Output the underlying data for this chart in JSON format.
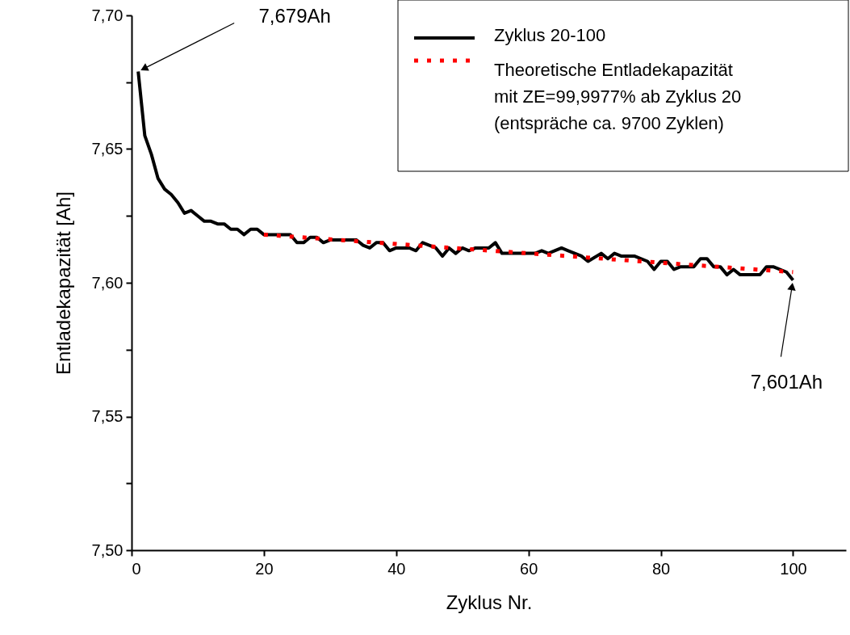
{
  "chart_data": {
    "type": "line",
    "xlabel": "Zyklus Nr.",
    "ylabel": "Entladekapazität [Ah]",
    "xlim": [
      0,
      108
    ],
    "xticks": [
      0,
      20,
      40,
      60,
      80,
      100
    ],
    "ylim": [
      7.5,
      7.7
    ],
    "yticks": [
      {
        "value": 7.5,
        "label": "7,50"
      },
      {
        "value": 7.525,
        "label": null
      },
      {
        "value": 7.55,
        "label": "7,55"
      },
      {
        "value": 7.575,
        "label": null
      },
      {
        "value": 7.6,
        "label": "7,60"
      },
      {
        "value": 7.625,
        "label": null
      },
      {
        "value": 7.65,
        "label": "7,65"
      },
      {
        "value": 7.675,
        "label": null
      },
      {
        "value": 7.7,
        "label": "7,70"
      }
    ],
    "legend": "top right",
    "series": [
      {
        "name": "Zyklus 20-100",
        "color": "#000000",
        "line_style": "solid",
        "x": [
          1,
          2,
          3,
          4,
          5,
          6,
          7,
          8,
          9,
          10,
          11,
          12,
          13,
          14,
          15,
          16,
          17,
          18,
          19,
          20,
          24,
          25,
          26,
          27,
          28,
          29,
          30,
          34,
          35,
          36,
          37,
          38,
          39,
          40,
          42,
          43,
          44,
          45,
          46,
          47,
          48,
          49,
          50,
          51,
          52,
          54,
          55,
          56,
          61,
          62,
          63,
          65,
          66,
          68,
          69,
          71,
          72,
          73,
          74,
          76,
          78,
          79,
          80,
          81,
          82,
          83,
          85,
          86,
          87,
          88,
          89,
          90,
          91,
          92,
          95,
          96,
          97,
          99,
          100
        ],
        "values": [
          7.679,
          7.655,
          7.648,
          7.639,
          7.635,
          7.633,
          7.63,
          7.626,
          7.627,
          7.625,
          7.623,
          7.623,
          7.622,
          7.622,
          7.62,
          7.62,
          7.618,
          7.62,
          7.62,
          7.618,
          7.618,
          7.615,
          7.615,
          7.617,
          7.617,
          7.615,
          7.616,
          7.616,
          7.614,
          7.613,
          7.615,
          7.615,
          7.612,
          7.613,
          7.613,
          7.612,
          7.615,
          7.614,
          7.613,
          7.61,
          7.613,
          7.611,
          7.613,
          7.612,
          7.613,
          7.613,
          7.615,
          7.611,
          7.611,
          7.612,
          7.611,
          7.613,
          7.612,
          7.61,
          7.608,
          7.611,
          7.609,
          7.611,
          7.61,
          7.61,
          7.608,
          7.605,
          7.608,
          7.608,
          7.605,
          7.606,
          7.606,
          7.609,
          7.609,
          7.606,
          7.606,
          7.603,
          7.605,
          7.603,
          7.603,
          7.606,
          7.606,
          7.604,
          7.601
        ]
      },
      {
        "name": "Theoretische Entladekapazität\nmit ZE=99,9977% ab Zyklus 20\n(entspräche ca. 9700 Zyklen)",
        "color": "#ff0000",
        "line_style": "dotted",
        "x": [
          20,
          100
        ],
        "values": [
          7.618,
          7.604
        ]
      }
    ],
    "annotations": [
      {
        "text": "7,679Ah",
        "x": 1,
        "y": 7.679
      },
      {
        "text": "7,601Ah",
        "x": 100,
        "y": 7.601
      }
    ]
  }
}
